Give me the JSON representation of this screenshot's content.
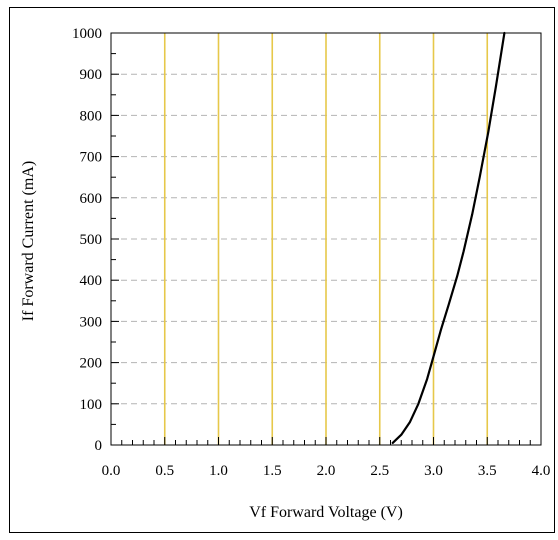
{
  "chart_data": {
    "type": "line",
    "title": "",
    "xlabel": "Vf Forward Voltage (V)",
    "ylabel": "If Forward Current (mA)",
    "xlim": [
      0.0,
      4.0
    ],
    "ylim": [
      0,
      1000
    ],
    "x_ticks": [
      "0.0",
      "0.5",
      "1.0",
      "1.5",
      "2.0",
      "2.5",
      "3.0",
      "3.5",
      "4.0"
    ],
    "y_ticks": [
      "0",
      "100",
      "200",
      "300",
      "400",
      "500",
      "600",
      "700",
      "800",
      "900",
      "1000"
    ],
    "x_major_step": 0.5,
    "x_minor_step": 0.1,
    "y_major_step": 100,
    "y_minor_step": 50,
    "grid": true,
    "series": [
      {
        "x": [
          2.62,
          2.7,
          2.78,
          2.86,
          2.94,
          3.0,
          3.07,
          3.14,
          3.22,
          3.28,
          3.36,
          3.43,
          3.51,
          3.58,
          3.66
        ],
        "y": [
          5,
          25,
          55,
          100,
          160,
          215,
          280,
          340,
          410,
          470,
          560,
          650,
          760,
          870,
          1000
        ]
      }
    ]
  },
  "colors": {
    "vertical_grid": "#e6c84a",
    "horizontal_grid": "#b4b4b4",
    "series_line": "#000000",
    "frame": "#000000",
    "background": "#ffffff"
  }
}
